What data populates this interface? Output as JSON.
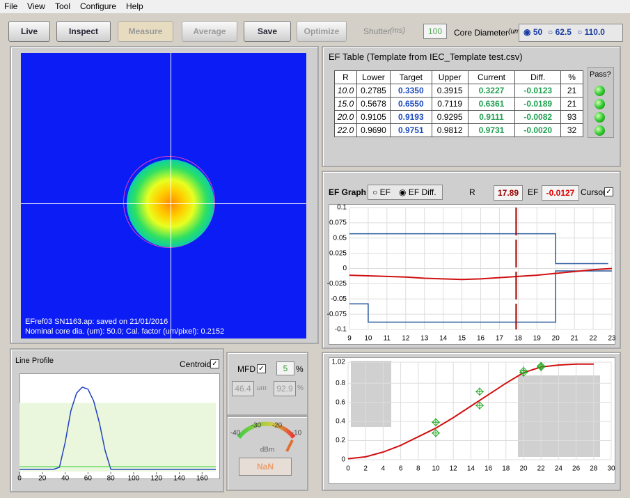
{
  "menu": [
    "File",
    "View",
    "Tool",
    "Configure",
    "Help"
  ],
  "toolbar": {
    "buttons": [
      {
        "label": "Live",
        "enabled": true
      },
      {
        "label": "Inspect",
        "enabled": true
      },
      {
        "label": "Measure",
        "enabled": false
      },
      {
        "label": "Average",
        "enabled": false
      },
      {
        "label": "Save",
        "enabled": true
      },
      {
        "label": "Optimize",
        "enabled": false
      }
    ],
    "shutter_label": "Shutter",
    "shutter_unit": "(ms)",
    "shutter_value": "100",
    "core_label": "Core Diameter",
    "core_unit": "(um)",
    "core_options": [
      "50",
      "62.5",
      "110.0"
    ]
  },
  "image": {
    "caption": [
      "EFref03 SN1163.ap: saved on 21/01/2016",
      "Nominal core dia. (um): 50.0; Cal. factor (um/pixel): 0.2152"
    ]
  },
  "ef_table": {
    "title": "EF Table (Template from IEC_Template test.csv)",
    "columns": [
      "R",
      "Lower",
      "Target",
      "Upper",
      "Current",
      "Diff.",
      "%"
    ],
    "pass_label": "Pass?",
    "rows": [
      [
        "10.0",
        "0.2785",
        "0.3350",
        "0.3915",
        "0.3227",
        "-0.0123",
        "21"
      ],
      [
        "15.0",
        "0.5678",
        "0.6550",
        "0.7119",
        "0.6361",
        "-0.0189",
        "21"
      ],
      [
        "20.0",
        "0.9105",
        "0.9193",
        "0.9295",
        "0.9111",
        "-0.0082",
        "93"
      ],
      [
        "22.0",
        "0.9690",
        "0.9751",
        "0.9812",
        "0.9731",
        "-0.0020",
        "32"
      ]
    ]
  },
  "ef_graph": {
    "title": "EF Graph",
    "modes": [
      "EF",
      "EF Diff."
    ],
    "r_label": "R",
    "r_value": 17.89,
    "ef_label": "EF",
    "ef_value": -0.0127,
    "cursor_label": "Cursor",
    "chart": {
      "type": "line",
      "xlim": [
        9,
        23
      ],
      "ylim": [
        -0.1,
        0.1
      ],
      "xticks": [
        9,
        10,
        11,
        12,
        13,
        14,
        15,
        16,
        17,
        18,
        19,
        20,
        21,
        22,
        23
      ],
      "yticks": [
        0.1,
        0.075,
        0.05,
        0.025,
        0,
        -0.025,
        -0.05,
        -0.075,
        -0.1
      ],
      "grid": true,
      "series": [
        {
          "color": "#2a5a9c",
          "x": [
            9,
            20,
            20,
            22.8
          ],
          "values": [
            0.057,
            0.057,
            0.008,
            0.008
          ]
        },
        {
          "color": "#2a5a9c",
          "x": [
            9,
            10,
            10,
            20,
            20,
            23
          ],
          "values": [
            -0.058,
            -0.058,
            -0.088,
            -0.088,
            -0.004,
            -0.004
          ]
        },
        {
          "color": "#d01010",
          "x": [
            9,
            10,
            11,
            12,
            13,
            14,
            15,
            16,
            17,
            18,
            19,
            20,
            21,
            22,
            23
          ],
          "values": [
            -0.011,
            -0.012,
            -0.013,
            -0.014,
            -0.016,
            -0.017,
            -0.018,
            -0.017,
            -0.015,
            -0.013,
            -0.011,
            -0.008,
            -0.005,
            -0.002,
            0
          ]
        }
      ]
    }
  },
  "ef_curve": {
    "type": "line",
    "xlim": [
      0,
      30
    ],
    "ylim": [
      0,
      1.02
    ],
    "xticks": [
      0,
      2,
      4,
      6,
      8,
      10,
      12,
      14,
      16,
      18,
      20,
      22,
      24,
      26,
      28,
      30
    ],
    "yticks": [
      0,
      0.2,
      0.4,
      0.6,
      0.8,
      1.02
    ],
    "grid": true,
    "series": [
      {
        "color": "#d01010",
        "x": [
          0,
          2,
          4,
          6,
          8,
          10,
          12,
          14,
          16,
          18,
          20,
          22,
          24,
          26,
          28
        ],
        "values": [
          0.01,
          0.03,
          0.08,
          0.15,
          0.24,
          0.33,
          0.44,
          0.56,
          0.68,
          0.8,
          0.91,
          0.97,
          0.99,
          1,
          1
        ]
      }
    ]
  },
  "line_profile": {
    "title": "Line Profile",
    "centroid_label": "Centroid",
    "type": "line",
    "xlim": [
      0,
      172
    ],
    "ylim": [
      0,
      1
    ],
    "xticks": [
      0,
      20,
      40,
      60,
      80,
      100,
      120,
      140,
      160
    ],
    "band": 0.7,
    "series": [
      {
        "color": "#2040c0",
        "x": [
          0,
          30,
          35,
          40,
          45,
          50,
          55,
          60,
          65,
          70,
          75,
          80,
          85,
          172
        ],
        "values": [
          0.03,
          0.03,
          0.05,
          0.3,
          0.62,
          0.8,
          0.86,
          0.84,
          0.72,
          0.5,
          0.22,
          0.03,
          0.03,
          0.03
        ]
      }
    ]
  },
  "mfd": {
    "label": "MFD",
    "tolerance": "5",
    "tolerance_unit": "%",
    "value": "46.4",
    "unit": "um",
    "percent": "92.9",
    "percent_unit": "%"
  },
  "gauge": {
    "ticks": [
      "-40",
      "-30",
      "-20",
      "-10"
    ],
    "unit": "dBm",
    "reading": "NaN"
  }
}
